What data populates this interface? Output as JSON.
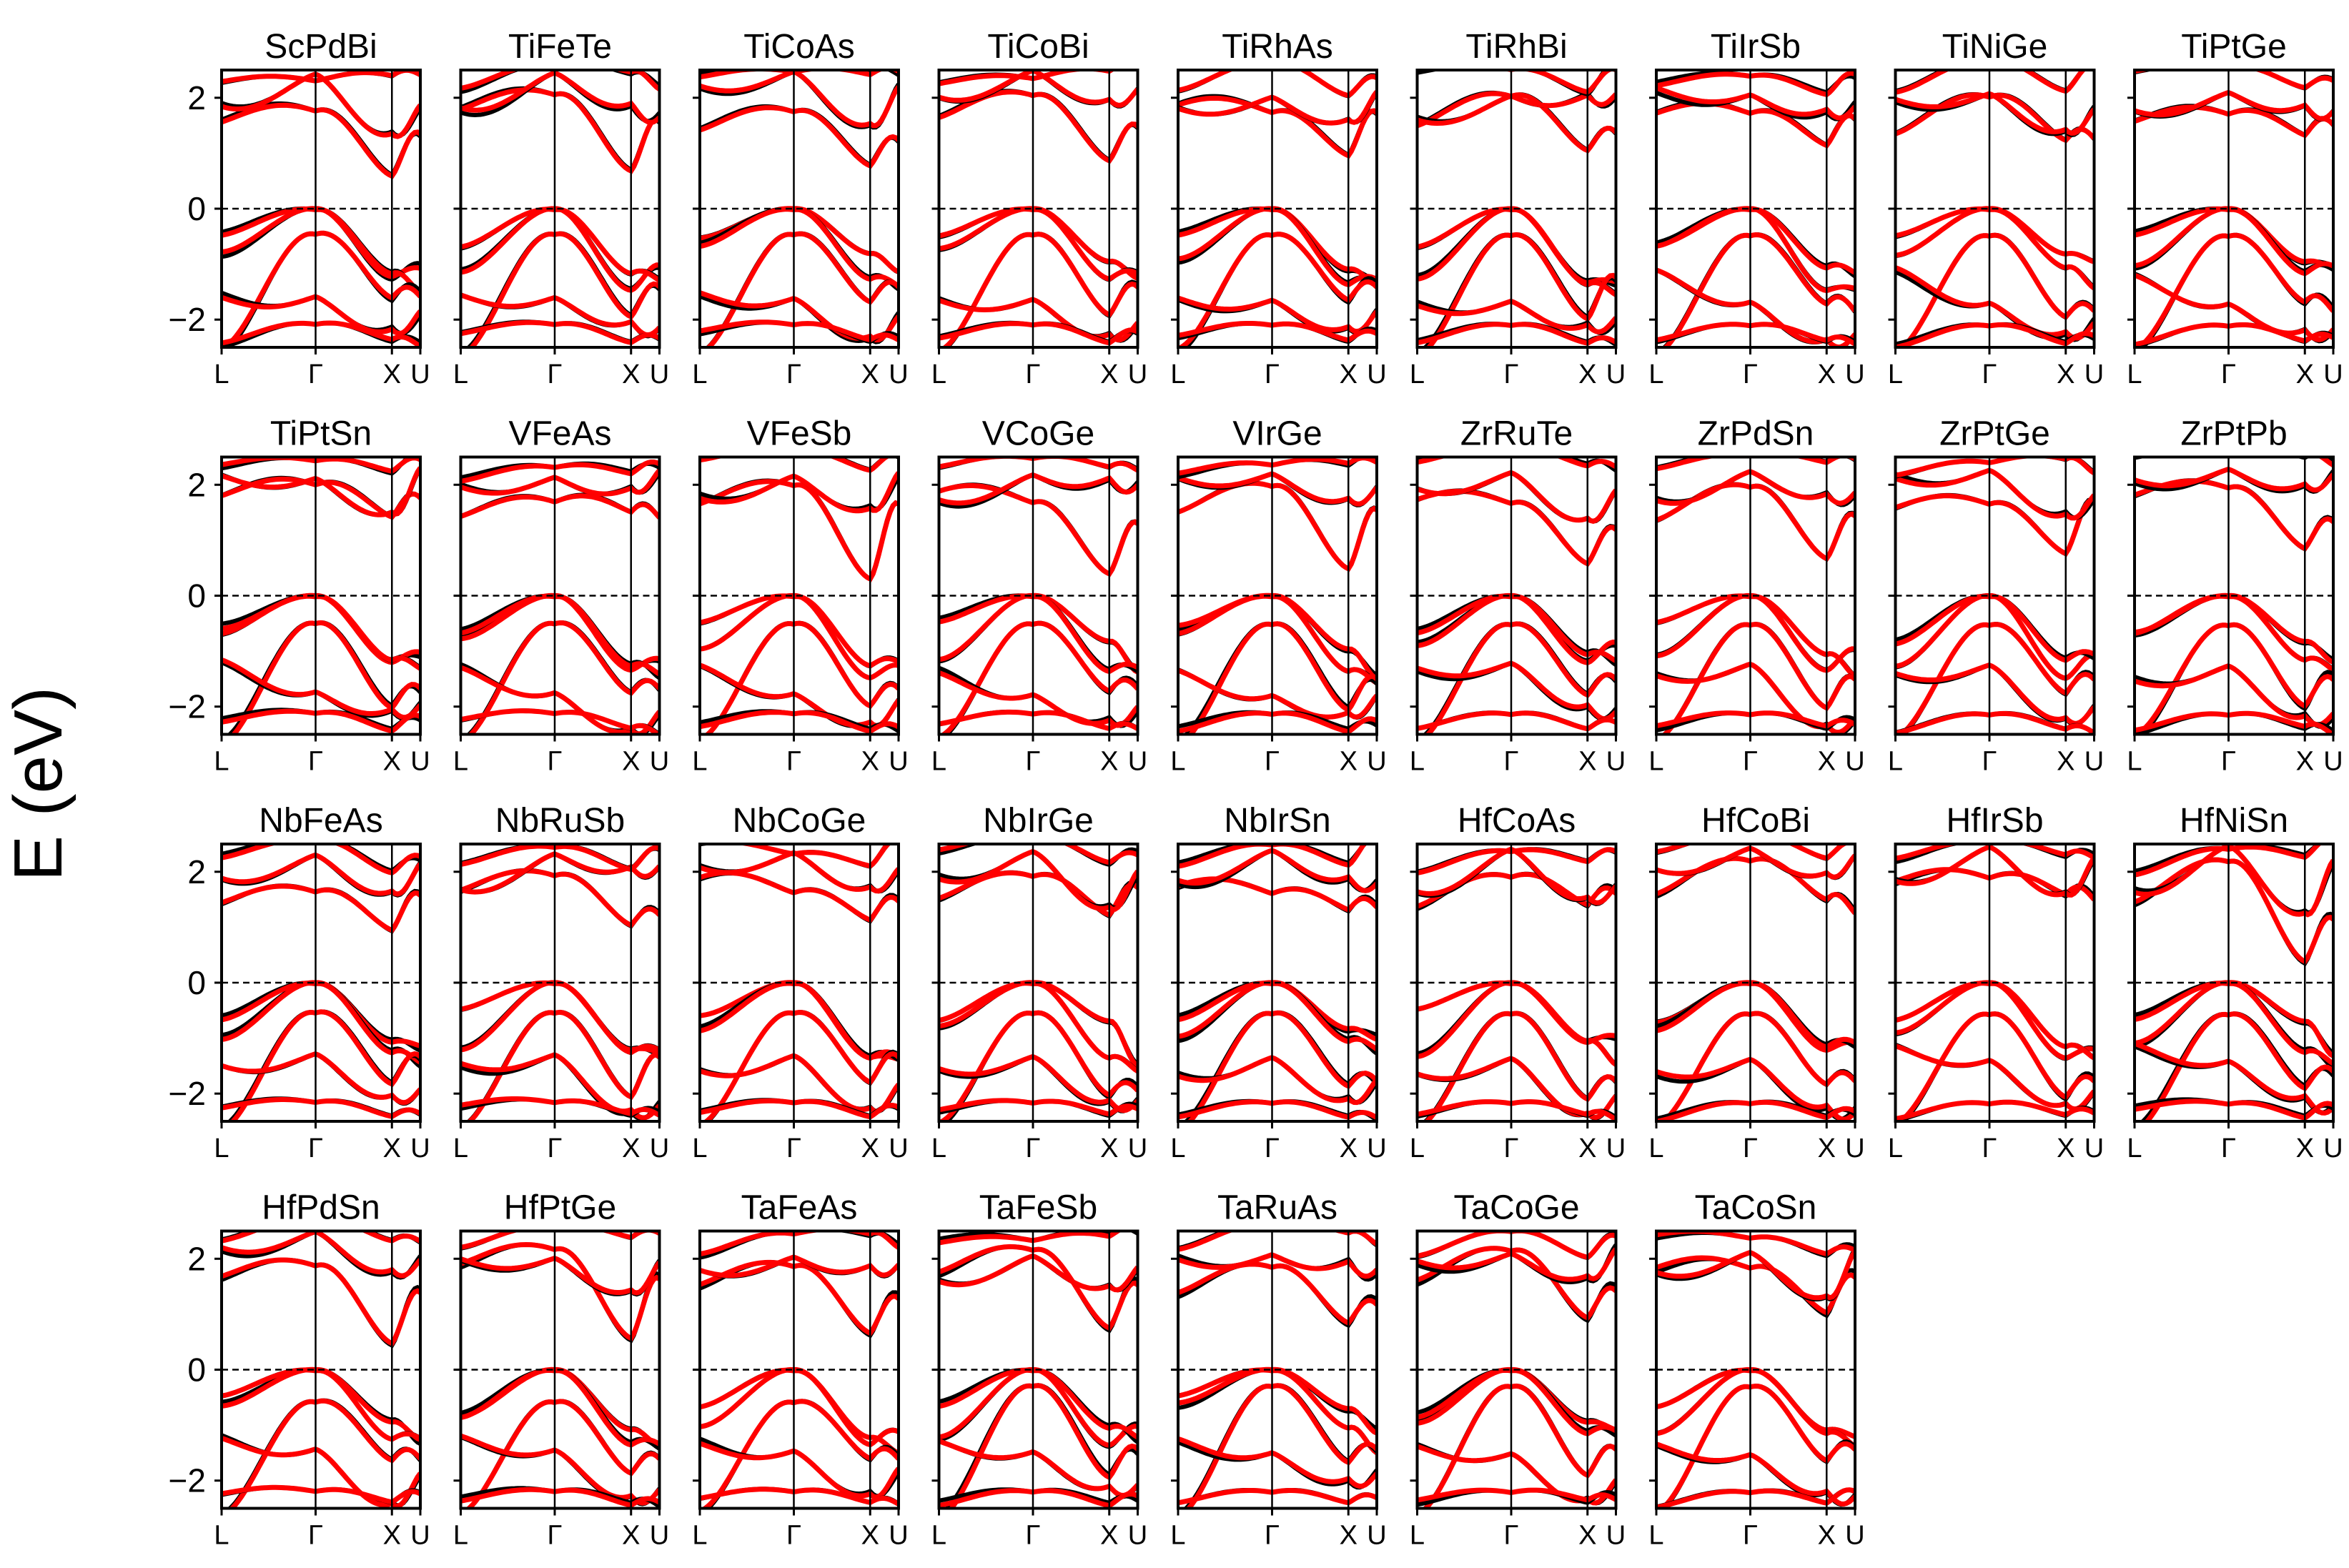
{
  "figure": {
    "ylabel": "E (eV)"
  },
  "colors": {
    "series_a": "#000000",
    "series_b": "#ff0000",
    "frame": "#000000",
    "zero_line": "#000000"
  },
  "chart_data": [
    {
      "type": "line",
      "title": "ScPdBi",
      "xticks": [
        "L",
        "Γ",
        "X",
        "U"
      ],
      "yticks": [
        2,
        0,
        -2
      ],
      "ylim": [
        -2.5,
        2.5
      ]
    },
    {
      "type": "line",
      "title": "TiFeTe",
      "xticks": [
        "L",
        "Γ",
        "X",
        "U"
      ],
      "yticks": [
        2,
        0,
        -2
      ],
      "ylim": [
        -2.5,
        2.5
      ]
    },
    {
      "type": "line",
      "title": "TiCoAs",
      "xticks": [
        "L",
        "Γ",
        "X",
        "U"
      ],
      "yticks": [
        2,
        0,
        -2
      ],
      "ylim": [
        -2.5,
        2.5
      ]
    },
    {
      "type": "line",
      "title": "TiCoBi",
      "xticks": [
        "L",
        "Γ",
        "X",
        "U"
      ],
      "yticks": [
        2,
        0,
        -2
      ],
      "ylim": [
        -2.5,
        2.5
      ]
    },
    {
      "type": "line",
      "title": "TiRhAs",
      "xticks": [
        "L",
        "Γ",
        "X",
        "U"
      ],
      "yticks": [
        2,
        0,
        -2
      ],
      "ylim": [
        -2.5,
        2.5
      ]
    },
    {
      "type": "line",
      "title": "TiRhBi",
      "xticks": [
        "L",
        "Γ",
        "X",
        "U"
      ],
      "yticks": [
        2,
        0,
        -2
      ],
      "ylim": [
        -2.5,
        2.5
      ]
    },
    {
      "type": "line",
      "title": "TiIrSb",
      "xticks": [
        "L",
        "Γ",
        "X",
        "U"
      ],
      "yticks": [
        2,
        0,
        -2
      ],
      "ylim": [
        -2.5,
        2.5
      ]
    },
    {
      "type": "line",
      "title": "TiNiGe",
      "xticks": [
        "L",
        "Γ",
        "X",
        "U"
      ],
      "yticks": [
        2,
        0,
        -2
      ],
      "ylim": [
        -2.5,
        2.5
      ]
    },
    {
      "type": "line",
      "title": "TiPtGe",
      "xticks": [
        "L",
        "Γ",
        "X",
        "U"
      ],
      "yticks": [
        2,
        0,
        -2
      ],
      "ylim": [
        -2.5,
        2.5
      ]
    },
    {
      "type": "line",
      "title": "TiPtSn",
      "xticks": [
        "L",
        "Γ",
        "X",
        "U"
      ],
      "yticks": [
        2,
        0,
        -2
      ],
      "ylim": [
        -2.5,
        2.5
      ]
    },
    {
      "type": "line",
      "title": "VFeAs",
      "xticks": [
        "L",
        "Γ",
        "X",
        "U"
      ],
      "yticks": [
        2,
        0,
        -2
      ],
      "ylim": [
        -2.5,
        2.5
      ]
    },
    {
      "type": "line",
      "title": "VFeSb",
      "xticks": [
        "L",
        "Γ",
        "X",
        "U"
      ],
      "yticks": [
        2,
        0,
        -2
      ],
      "ylim": [
        -2.5,
        2.5
      ]
    },
    {
      "type": "line",
      "title": "VCoGe",
      "xticks": [
        "L",
        "Γ",
        "X",
        "U"
      ],
      "yticks": [
        2,
        0,
        -2
      ],
      "ylim": [
        -2.5,
        2.5
      ]
    },
    {
      "type": "line",
      "title": "VIrGe",
      "xticks": [
        "L",
        "Γ",
        "X",
        "U"
      ],
      "yticks": [
        2,
        0,
        -2
      ],
      "ylim": [
        -2.5,
        2.5
      ]
    },
    {
      "type": "line",
      "title": "ZrRuTe",
      "xticks": [
        "L",
        "Γ",
        "X",
        "U"
      ],
      "yticks": [
        2,
        0,
        -2
      ],
      "ylim": [
        -2.5,
        2.5
      ]
    },
    {
      "type": "line",
      "title": "ZrPdSn",
      "xticks": [
        "L",
        "Γ",
        "X",
        "U"
      ],
      "yticks": [
        2,
        0,
        -2
      ],
      "ylim": [
        -2.5,
        2.5
      ]
    },
    {
      "type": "line",
      "title": "ZrPtGe",
      "xticks": [
        "L",
        "Γ",
        "X",
        "U"
      ],
      "yticks": [
        2,
        0,
        -2
      ],
      "ylim": [
        -2.5,
        2.5
      ]
    },
    {
      "type": "line",
      "title": "ZrPtPb",
      "xticks": [
        "L",
        "Γ",
        "X",
        "U"
      ],
      "yticks": [
        2,
        0,
        -2
      ],
      "ylim": [
        -2.5,
        2.5
      ]
    },
    {
      "type": "line",
      "title": "NbFeAs",
      "xticks": [
        "L",
        "Γ",
        "X",
        "U"
      ],
      "yticks": [
        2,
        0,
        -2
      ],
      "ylim": [
        -2.5,
        2.5
      ]
    },
    {
      "type": "line",
      "title": "NbRuSb",
      "xticks": [
        "L",
        "Γ",
        "X",
        "U"
      ],
      "yticks": [
        2,
        0,
        -2
      ],
      "ylim": [
        -2.5,
        2.5
      ]
    },
    {
      "type": "line",
      "title": "NbCoGe",
      "xticks": [
        "L",
        "Γ",
        "X",
        "U"
      ],
      "yticks": [
        2,
        0,
        -2
      ],
      "ylim": [
        -2.5,
        2.5
      ]
    },
    {
      "type": "line",
      "title": "NbIrGe",
      "xticks": [
        "L",
        "Γ",
        "X",
        "U"
      ],
      "yticks": [
        2,
        0,
        -2
      ],
      "ylim": [
        -2.5,
        2.5
      ]
    },
    {
      "type": "line",
      "title": "NbIrSn",
      "xticks": [
        "L",
        "Γ",
        "X",
        "U"
      ],
      "yticks": [
        2,
        0,
        -2
      ],
      "ylim": [
        -2.5,
        2.5
      ]
    },
    {
      "type": "line",
      "title": "HfCoAs",
      "xticks": [
        "L",
        "Γ",
        "X",
        "U"
      ],
      "yticks": [
        2,
        0,
        -2
      ],
      "ylim": [
        -2.5,
        2.5
      ]
    },
    {
      "type": "line",
      "title": "HfCoBi",
      "xticks": [
        "L",
        "Γ",
        "X",
        "U"
      ],
      "yticks": [
        2,
        0,
        -2
      ],
      "ylim": [
        -2.5,
        2.5
      ]
    },
    {
      "type": "line",
      "title": "HfIrSb",
      "xticks": [
        "L",
        "Γ",
        "X",
        "U"
      ],
      "yticks": [
        2,
        0,
        -2
      ],
      "ylim": [
        -2.5,
        2.5
      ]
    },
    {
      "type": "line",
      "title": "HfNiSn",
      "xticks": [
        "L",
        "Γ",
        "X",
        "U"
      ],
      "yticks": [
        2,
        0,
        -2
      ],
      "ylim": [
        -2.5,
        2.5
      ]
    },
    {
      "type": "line",
      "title": "HfPdSn",
      "xticks": [
        "L",
        "Γ",
        "X",
        "U"
      ],
      "yticks": [
        2,
        0,
        -2
      ],
      "ylim": [
        -2.5,
        2.5
      ]
    },
    {
      "type": "line",
      "title": "HfPtGe",
      "xticks": [
        "L",
        "Γ",
        "X",
        "U"
      ],
      "yticks": [
        2,
        0,
        -2
      ],
      "ylim": [
        -2.5,
        2.5
      ]
    },
    {
      "type": "line",
      "title": "TaFeAs",
      "xticks": [
        "L",
        "Γ",
        "X",
        "U"
      ],
      "yticks": [
        2,
        0,
        -2
      ],
      "ylim": [
        -2.5,
        2.5
      ]
    },
    {
      "type": "line",
      "title": "TaFeSb",
      "xticks": [
        "L",
        "Γ",
        "X",
        "U"
      ],
      "yticks": [
        2,
        0,
        -2
      ],
      "ylim": [
        -2.5,
        2.5
      ]
    },
    {
      "type": "line",
      "title": "TaRuAs",
      "xticks": [
        "L",
        "Γ",
        "X",
        "U"
      ],
      "yticks": [
        2,
        0,
        -2
      ],
      "ylim": [
        -2.5,
        2.5
      ]
    },
    {
      "type": "line",
      "title": "TaCoGe",
      "xticks": [
        "L",
        "Γ",
        "X",
        "U"
      ],
      "yticks": [
        2,
        0,
        -2
      ],
      "ylim": [
        -2.5,
        2.5
      ]
    },
    {
      "type": "line",
      "title": "TaCoSn",
      "xticks": [
        "L",
        "Γ",
        "X",
        "U"
      ],
      "yticks": [
        2,
        0,
        -2
      ],
      "ylim": [
        -2.5,
        2.5
      ]
    }
  ]
}
